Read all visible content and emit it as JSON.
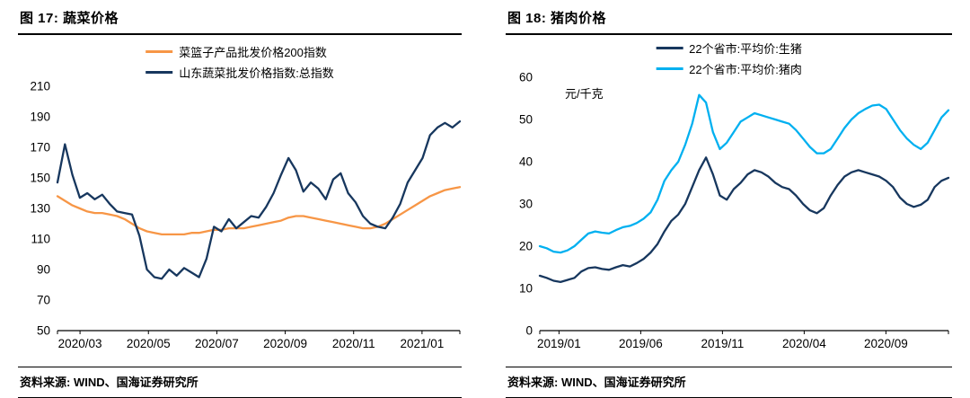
{
  "figures": [
    {
      "title": "图 17:  蔬菜价格",
      "source": "资料来源: WIND、国海证券研究所"
    },
    {
      "title": "图 18:  猪肉价格",
      "source": "资料来源: WIND、国海证券研究所"
    }
  ],
  "chart_data": [
    {
      "type": "line",
      "title": "蔬菜价格",
      "xlabel": "",
      "ylabel": "",
      "ylim": [
        50,
        210
      ],
      "yticks": [
        50,
        70,
        90,
        110,
        130,
        150,
        170,
        190,
        210
      ],
      "xticklabels": [
        "2020/03",
        "2020/05",
        "2020/07",
        "2020/09",
        "2020/11",
        "2021/01"
      ],
      "grid": false,
      "legend_position": "top-center",
      "series": [
        {
          "name": "菜篮子产品批发价格200指数",
          "color": "#f79646",
          "values": [
            138,
            135,
            132,
            130,
            128,
            127,
            127,
            126,
            125,
            123,
            120,
            117,
            115,
            114,
            113,
            113,
            113,
            113,
            114,
            114,
            115,
            116,
            116,
            117,
            117,
            117,
            118,
            119,
            120,
            121,
            122,
            124,
            125,
            125,
            124,
            123,
            122,
            121,
            120,
            119,
            118,
            117,
            117,
            118,
            120,
            123,
            126,
            129,
            132,
            135,
            138,
            140,
            142,
            143,
            144
          ]
        },
        {
          "name": "山东蔬菜批发价格指数:总指数",
          "color": "#17375e",
          "values": [
            147,
            172,
            152,
            137,
            140,
            136,
            139,
            133,
            128,
            127,
            126,
            112,
            90,
            85,
            84,
            90,
            86,
            91,
            88,
            85,
            97,
            118,
            115,
            123,
            117,
            121,
            125,
            124,
            131,
            140,
            152,
            163,
            155,
            141,
            147,
            143,
            136,
            149,
            153,
            140,
            134,
            125,
            120,
            118,
            117,
            124,
            133,
            147,
            155,
            163,
            178,
            183,
            186,
            183,
            187
          ]
        }
      ]
    },
    {
      "type": "line",
      "title": "猪肉价格",
      "xlabel": "",
      "ylabel": "元/千克",
      "ylim": [
        0,
        60
      ],
      "yticks": [
        0,
        10,
        20,
        30,
        40,
        50,
        60
      ],
      "xticklabels": [
        "2019/01",
        "2019/06",
        "2019/11",
        "2020/04",
        "2020/09"
      ],
      "grid": false,
      "legend_position": "top-center",
      "series": [
        {
          "name": "22个省市:平均价:生猪",
          "color": "#17375e",
          "values": [
            13,
            12.5,
            11.8,
            11.5,
            12,
            12.5,
            14,
            14.8,
            15,
            14.6,
            14.4,
            15,
            15.5,
            15.2,
            16,
            17,
            18.5,
            20.5,
            23.5,
            26,
            27.5,
            30,
            34,
            38,
            41,
            37,
            32,
            31,
            33.5,
            35,
            37,
            38,
            37.5,
            36.5,
            35,
            34,
            33.5,
            32,
            30,
            28.5,
            27.8,
            29,
            32,
            34.5,
            36.5,
            37.5,
            38,
            37.5,
            37,
            36.5,
            35.5,
            34,
            31.5,
            30,
            29.3,
            29.8,
            31,
            34,
            35.5,
            36.2
          ]
        },
        {
          "name": "22个省市:平均价:猪肉",
          "color": "#00b0f0",
          "values": [
            20,
            19.5,
            18.7,
            18.5,
            19,
            20,
            21.5,
            23,
            23.5,
            23.2,
            23,
            23.8,
            24.5,
            24.8,
            25.5,
            26.5,
            28,
            31,
            35.5,
            38,
            40,
            44,
            49,
            55.8,
            54,
            47,
            43,
            44.5,
            47,
            49.5,
            50.5,
            51.5,
            51,
            50.5,
            50,
            49.5,
            49,
            47.5,
            45.5,
            43.5,
            42,
            42,
            43,
            45.5,
            48,
            50,
            51.5,
            52.5,
            53.3,
            53.5,
            52.5,
            50,
            47.5,
            45.5,
            44,
            43,
            44.5,
            47.5,
            50.5,
            52.2
          ]
        }
      ]
    }
  ]
}
